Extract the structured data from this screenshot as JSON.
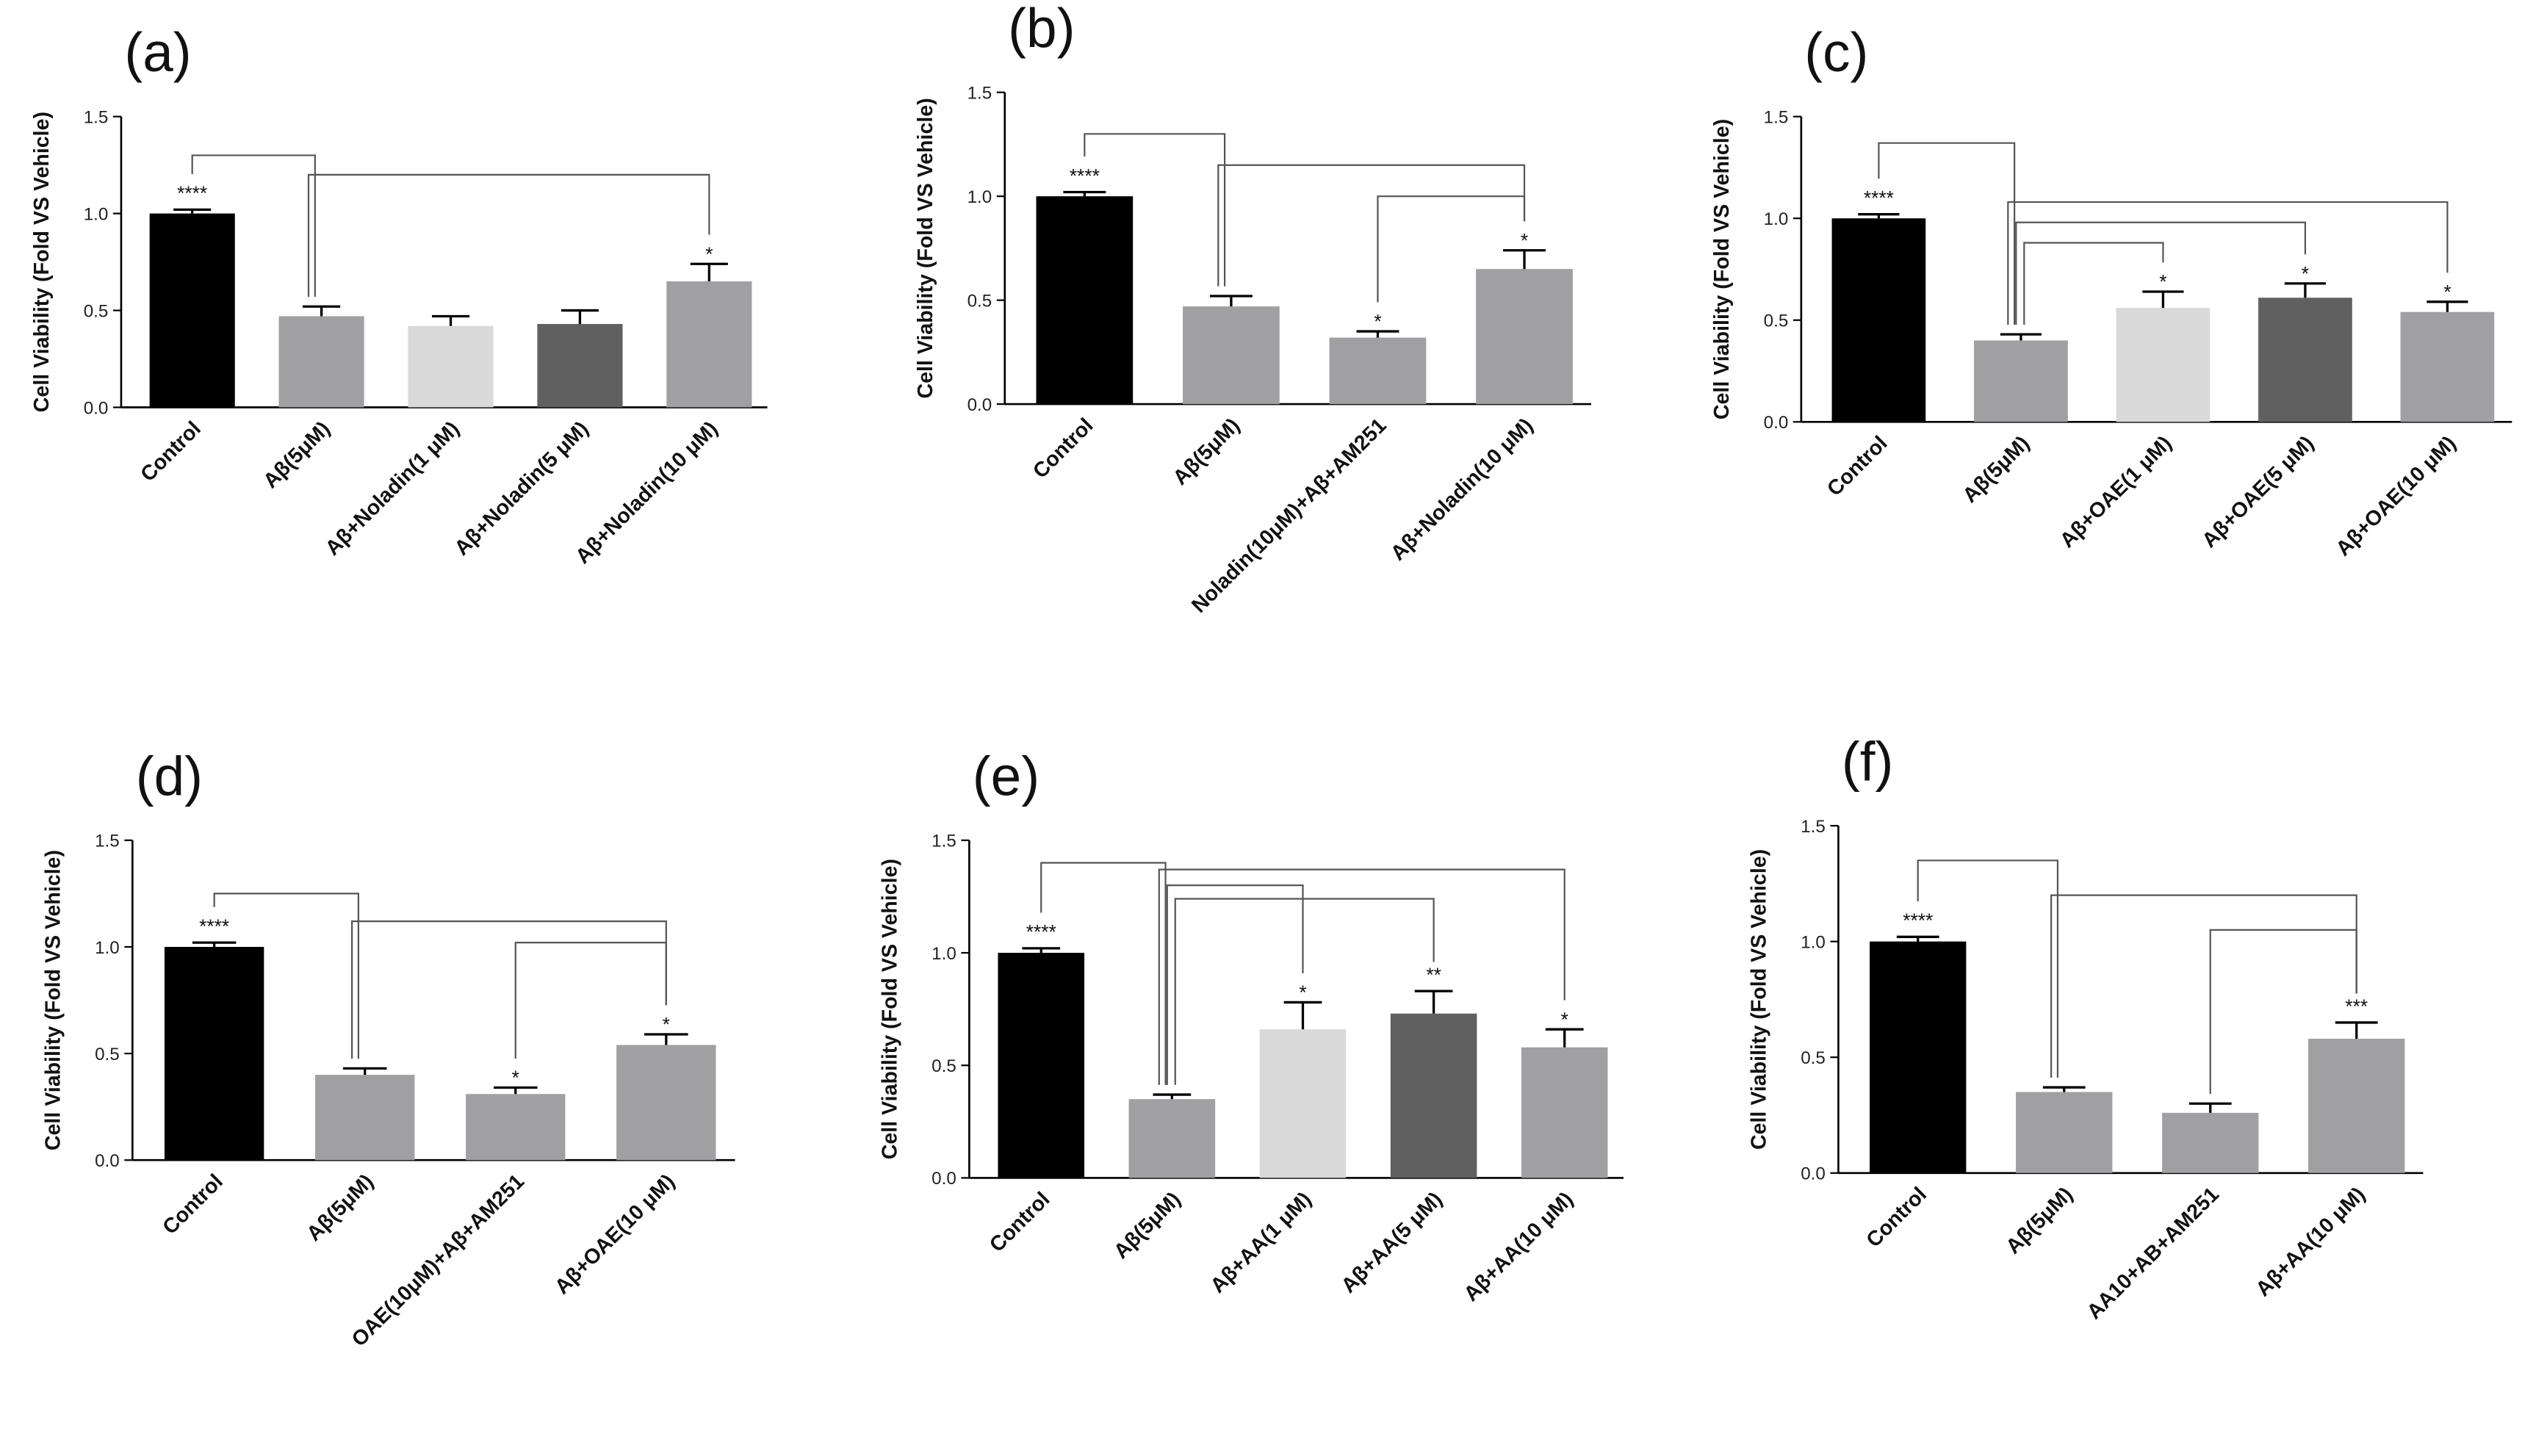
{
  "chart_data": [
    {
      "type": "bar",
      "panel": "(a)",
      "ylabel": "Cell Viability (Fold VS Vehicle)",
      "categories": [
        "Control",
        "Aβ(5μM)",
        "Aβ+Noladin(1 μM)",
        "Aβ+Noladin(5 μM)",
        "Aβ+Noladin(10 μM)"
      ],
      "values": [
        1.0,
        0.47,
        0.42,
        0.43,
        0.65
      ],
      "errors": [
        0.02,
        0.05,
        0.05,
        0.07,
        0.09
      ],
      "colors": [
        "#000000",
        "#a0a0a3",
        "#d9d9d9",
        "#606060",
        "#a0a0a3"
      ],
      "significance": [
        "****",
        null,
        null,
        null,
        "*"
      ],
      "ylim": [
        0,
        1.5
      ],
      "yticks": [
        {
          "value": 0,
          "label": "0.0"
        },
        0.5,
        {
          "value": 1,
          "label": "1.0"
        },
        1.5
      ]
    },
    {
      "type": "bar",
      "panel": "(b)",
      "ylabel": "Cell Viability (Fold VS Vehicle)",
      "categories": [
        "Control",
        "Aβ(5μM)",
        "Noladin(10μM)+Aβ+AM251",
        "Aβ+Noladin(10 μM)"
      ],
      "values": [
        1.0,
        0.47,
        0.32,
        0.65
      ],
      "errors": [
        0.02,
        0.05,
        0.03,
        0.09
      ],
      "colors": [
        "#000000",
        "#a0a0a3",
        "#a0a0a3",
        "#a0a0a3"
      ],
      "significance": [
        "****",
        null,
        "*",
        "*"
      ],
      "ylim": [
        0,
        1.5
      ],
      "yticks": [
        {
          "value": 0,
          "label": "0.0"
        },
        0.5,
        {
          "value": 1,
          "label": "1.0"
        },
        1.5
      ]
    },
    {
      "type": "bar",
      "panel": "(c)",
      "ylabel": "Cell Viability (Fold VS Vehicle)",
      "categories": [
        "Control",
        "Aβ(5μM)",
        "Aβ+OAE(1 μM)",
        "Aβ+OAE(5 μM)",
        "Aβ+OAE(10 μM)"
      ],
      "values": [
        1.0,
        0.4,
        0.56,
        0.61,
        0.54
      ],
      "errors": [
        0.02,
        0.03,
        0.08,
        0.07,
        0.05
      ],
      "colors": [
        "#000000",
        "#a0a0a3",
        "#d9d9d9",
        "#606060",
        "#a0a0a3"
      ],
      "significance": [
        "****",
        null,
        "*",
        "*",
        "*"
      ],
      "ylim": [
        0,
        1.5
      ],
      "yticks": [
        {
          "value": 0,
          "label": "0.0"
        },
        0.5,
        {
          "value": 1,
          "label": "1.0"
        },
        1.5
      ]
    },
    {
      "type": "bar",
      "panel": "(d)",
      "ylabel": "Cell Viability (Fold VS Vehicle)",
      "categories": [
        "Control",
        "Aβ(5μM)",
        "OAE(10μM)+Aβ+AM251",
        "Aβ+OAE(10 μM)"
      ],
      "values": [
        1.0,
        0.4,
        0.31,
        0.54
      ],
      "errors": [
        0.02,
        0.03,
        0.03,
        0.05
      ],
      "colors": [
        "#000000",
        "#a0a0a3",
        "#a0a0a3",
        "#a0a0a3"
      ],
      "significance": [
        "****",
        null,
        "*",
        "*"
      ],
      "ylim": [
        0,
        1.5
      ],
      "yticks": [
        {
          "value": 0,
          "label": "0.0"
        },
        0.5,
        {
          "value": 1,
          "label": "1.0"
        },
        1.5
      ]
    },
    {
      "type": "bar",
      "panel": "(e)",
      "ylabel": "Cell Viability (Fold VS Vehicle)",
      "categories": [
        "Control",
        "Aβ(5μM)",
        "Aβ+AA(1 μM)",
        "Aβ+AA(5 μM)",
        "Aβ+AA(10 μM)"
      ],
      "values": [
        1.0,
        0.35,
        0.66,
        0.73,
        0.58
      ],
      "errors": [
        0.02,
        0.02,
        0.12,
        0.1,
        0.08
      ],
      "colors": [
        "#000000",
        "#a0a0a3",
        "#d9d9d9",
        "#606060",
        "#a0a0a3"
      ],
      "significance": [
        "****",
        null,
        "*",
        "**",
        "*"
      ],
      "ylim": [
        0,
        1.5
      ],
      "yticks": [
        {
          "value": 0,
          "label": "0.0"
        },
        0.5,
        {
          "value": 1,
          "label": "1.0"
        },
        1.5
      ]
    },
    {
      "type": "bar",
      "panel": "(f)",
      "ylabel": "Cell Viability (Fold VS Vehicle)",
      "categories": [
        "Control",
        "Aβ(5μM)",
        "AA10+AB+AM251",
        "Aβ+AA(10 μM)"
      ],
      "values": [
        1.0,
        0.35,
        0.26,
        0.58
      ],
      "errors": [
        0.02,
        0.02,
        0.04,
        0.07
      ],
      "colors": [
        "#000000",
        "#a0a0a3",
        "#a0a0a3",
        "#a0a0a3"
      ],
      "significance": [
        "****",
        null,
        null,
        "***"
      ],
      "ylim": [
        0,
        1.5
      ],
      "yticks": [
        {
          "value": 0,
          "label": "0.0"
        },
        0.5,
        {
          "value": 1,
          "label": "1.0"
        },
        1.5
      ]
    }
  ]
}
